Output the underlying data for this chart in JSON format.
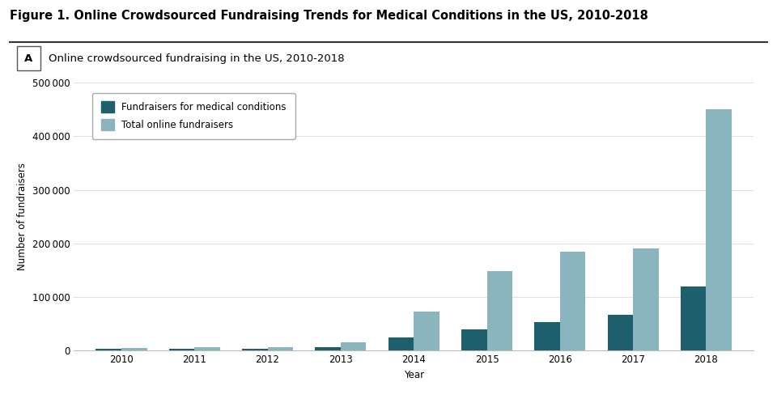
{
  "title": "Figure 1. Online Crowdsourced Fundraising Trends for Medical Conditions in the US, 2010-2018",
  "subtitle_label": "A",
  "subtitle_text": "Online crowdsourced fundraising in the US, 2010-2018",
  "years": [
    2010,
    2011,
    2012,
    2013,
    2014,
    2015,
    2016,
    2017,
    2018
  ],
  "medical": [
    3000,
    3500,
    3000,
    7000,
    25000,
    40000,
    53000,
    67000,
    120000
  ],
  "total": [
    5000,
    6000,
    6500,
    15000,
    73000,
    148000,
    185000,
    190000,
    450000
  ],
  "color_medical": "#1e5f6e",
  "color_total": "#8ab4be",
  "legend_medical": "Fundraisers for medical conditions",
  "legend_total": "Total online fundraisers",
  "ylabel": "Number of fundraisers",
  "xlabel": "Year",
  "ylim": [
    0,
    500000
  ],
  "yticks": [
    0,
    100000,
    200000,
    300000,
    400000,
    500000
  ],
  "ytick_labels": [
    "0",
    "100 000",
    "200 000",
    "300 000",
    "400 000",
    "500 000"
  ],
  "background_color": "#ffffff",
  "grid_color": "#e0e0e0",
  "bar_width": 0.35,
  "title_fontsize": 10.5,
  "subtitle_fontsize": 9.5,
  "axis_fontsize": 8.5,
  "legend_fontsize": 8.5
}
